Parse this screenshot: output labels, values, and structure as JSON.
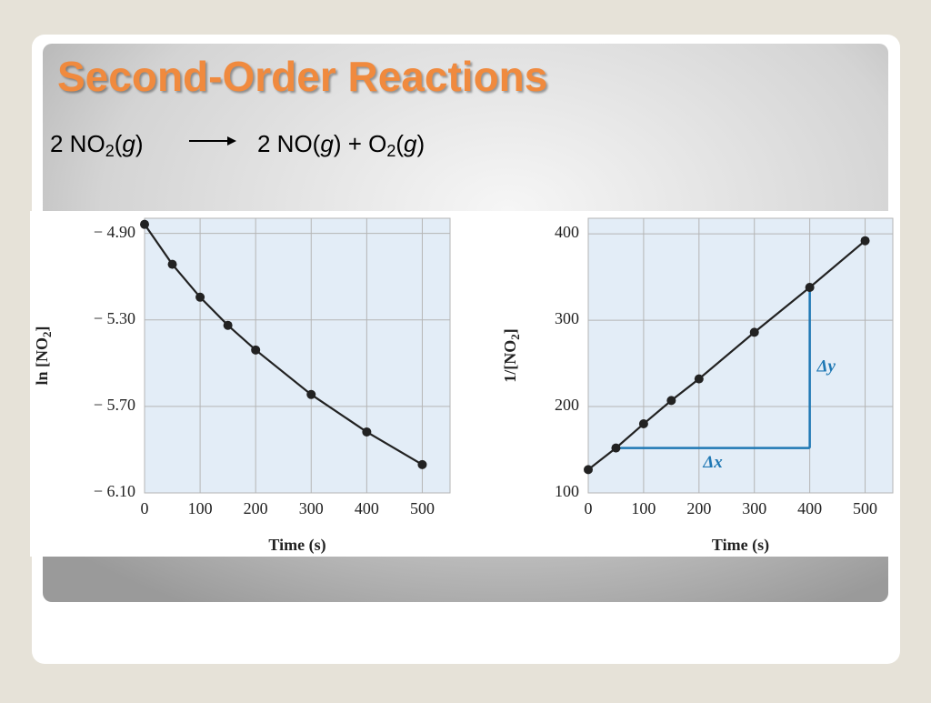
{
  "title": "Second-Order Reactions",
  "equation": {
    "reactants": [
      "2 NO",
      "2",
      "(",
      "g",
      ")"
    ],
    "products": [
      "2 NO(",
      "g",
      ") + O",
      "2",
      "(",
      "g",
      ")"
    ]
  },
  "chart_data": [
    {
      "type": "line",
      "xlabel": "Time (s)",
      "ylabel": [
        "ln [NO",
        "2",
        "]"
      ],
      "color": "#222222",
      "curve_color": "#222222",
      "grid": true,
      "x": [
        0,
        50,
        100,
        150,
        200,
        300,
        400,
        500
      ],
      "values": [
        -4.858,
        -5.043,
        -5.195,
        -5.325,
        -5.439,
        -5.645,
        -5.818,
        -5.969
      ],
      "xlim": [
        0,
        550
      ],
      "ylim": [
        -6.1,
        -4.83
      ],
      "xticks": [
        0,
        100,
        200,
        300,
        400,
        500
      ],
      "yticks": [
        {
          "value": -4.9,
          "label": "− 4.90"
        },
        {
          "value": -5.3,
          "label": "− 5.30"
        },
        {
          "value": -5.7,
          "label": "− 5.70"
        },
        {
          "value": -6.1,
          "label": "− 6.10"
        }
      ]
    },
    {
      "type": "line",
      "xlabel": "Time (s)",
      "ylabel": [
        "1/[NO",
        "2",
        "]"
      ],
      "color": "#222222",
      "curve_color": "#222222",
      "grid": true,
      "x": [
        0,
        50,
        100,
        150,
        200,
        300,
        400,
        500
      ],
      "values": [
        127,
        152,
        180,
        207,
        232,
        286,
        338,
        392
      ],
      "xlim": [
        0,
        550
      ],
      "ylim": [
        100,
        418
      ],
      "xticks": [
        0,
        100,
        200,
        300,
        400,
        500
      ],
      "yticks": [
        100,
        200,
        300,
        400
      ],
      "triangle": {
        "x0": 50,
        "x1": 400,
        "y0": 152,
        "y1": 338,
        "color": "#1f78b4"
      },
      "annotations": [
        "Δx",
        "Δy"
      ]
    }
  ]
}
